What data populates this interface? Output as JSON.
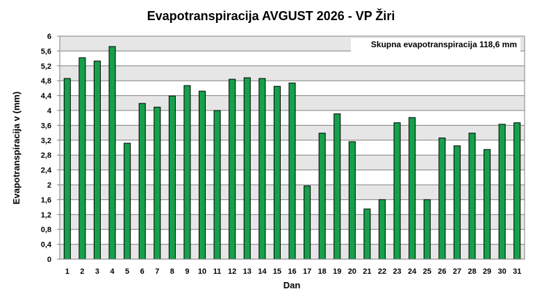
{
  "chart_data": {
    "type": "bar",
    "title": "Evapotranspiracija  AVGUST 2026 - VP Žiri",
    "xlabel": "Dan",
    "ylabel": "Evapotranspiracija v  (mm)",
    "annotation": "Skupna evapotranspiracija  118,6 mm",
    "ylim": [
      0,
      6
    ],
    "yticks": [
      "0",
      "0,4",
      "0,8",
      "1,2",
      "1,6",
      "2",
      "2,4",
      "2,8",
      "3,2",
      "3,6",
      "4",
      "4,4",
      "4,8",
      "5,2",
      "5,6",
      "6"
    ],
    "grid": true,
    "legend": "none",
    "bar_color": "#16a04c",
    "bar_stroke": "#000000",
    "plot_bg_bands": [
      "#e6e6e6",
      "#ffffff"
    ],
    "categories": [
      "1",
      "2",
      "3",
      "4",
      "5",
      "6",
      "7",
      "8",
      "9",
      "10",
      "11",
      "12",
      "13",
      "14",
      "15",
      "16",
      "17",
      "18",
      "19",
      "20",
      "21",
      "22",
      "23",
      "24",
      "25",
      "26",
      "27",
      "28",
      "29",
      "30",
      "31"
    ],
    "values": [
      4.86,
      5.42,
      5.33,
      5.72,
      3.12,
      4.19,
      4.09,
      4.39,
      4.67,
      4.52,
      4.0,
      4.84,
      4.88,
      4.86,
      4.65,
      4.74,
      1.97,
      3.39,
      3.91,
      3.16,
      1.35,
      1.6,
      3.67,
      3.81,
      1.6,
      3.26,
      3.05,
      3.39,
      2.95,
      3.63,
      3.67
    ]
  }
}
